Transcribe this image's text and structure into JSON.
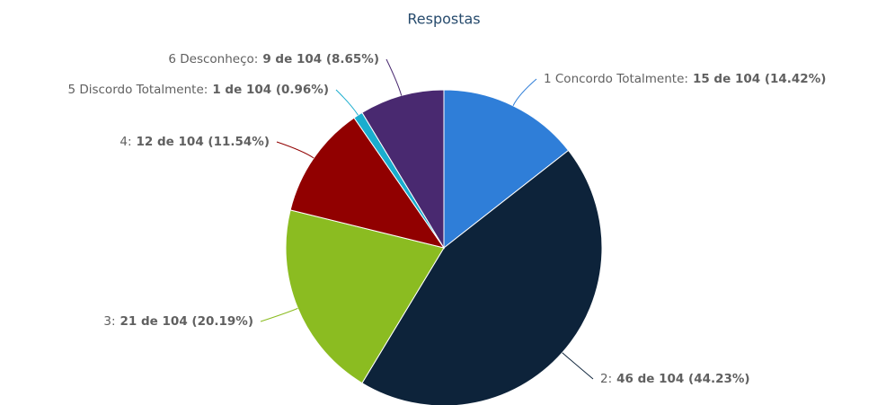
{
  "chart_data": {
    "type": "pie",
    "title": "Respostas",
    "categories": [
      "1 Concordo Totalmente:",
      "2:",
      "3:",
      "4:",
      "5 Discordo Totalmente:",
      "6 Desconheço:"
    ],
    "values": [
      15,
      46,
      21,
      12,
      1,
      9
    ],
    "value_labels": [
      "15 de 104 (14.42%)",
      "46 de 104 (44.23%)",
      "21 de 104 (20.19%)",
      "12 de 104 (11.54%)",
      "1 de 104 (0.96%)",
      "9 de 104 (8.65%)"
    ],
    "colors": [
      "#2f7ed8",
      "#0d233a",
      "#8bbc21",
      "#910000",
      "#1aadce",
      "#492970"
    ]
  }
}
